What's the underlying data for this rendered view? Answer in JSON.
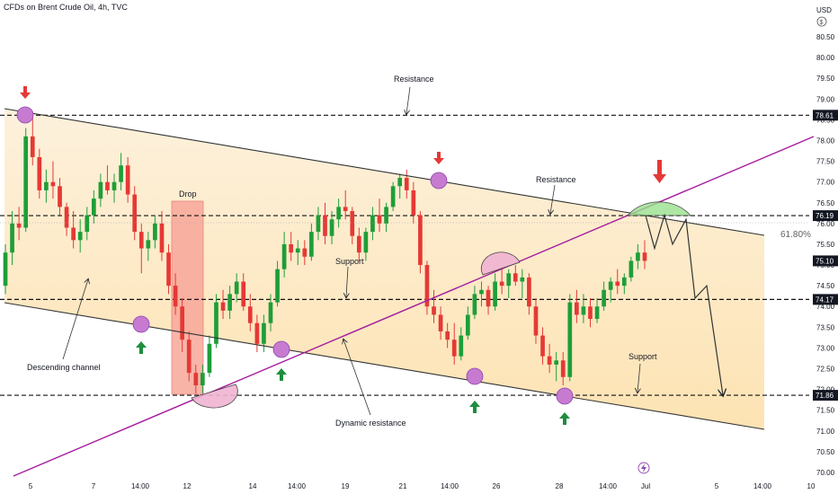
{
  "header": {
    "title": "CFDs on Brent Crude Oil, 4h, TVC"
  },
  "price_axis": {
    "currency": "USD"
  },
  "colors": {
    "bull": "#26a69a",
    "bear": "#ef5350",
    "bull_candle": "#1e9e38",
    "bear_candle": "#e53935",
    "channel_fill": "#fdecc8",
    "dynamic_line": "#a61da0",
    "circle": "#c67bd1",
    "drop_box": "#f8a79a",
    "green_cap": "#9be08e",
    "pink_cap": "#f0b4d2"
  },
  "chart_data": {
    "type": "candlestick",
    "symbol": "CFDs on Brent Crude Oil",
    "timeframe": "4h",
    "source": "TVC",
    "ylim": [
      70.0,
      81.0
    ],
    "y_ticks": [
      70.0,
      70.5,
      71.0,
      71.5,
      72.0,
      72.5,
      73.0,
      73.5,
      74.0,
      74.5,
      75.0,
      75.5,
      76.0,
      76.5,
      77.0,
      77.5,
      78.0,
      78.5,
      79.0,
      79.5,
      80.0,
      80.5
    ],
    "x_ticks": [
      "5",
      "7",
      "14:00",
      "12",
      "14",
      "14:00",
      "19",
      "21",
      "14:00",
      "26",
      "28",
      "14:00",
      "Jul",
      "5",
      "14:00",
      "10"
    ],
    "levels": [
      {
        "name": "resistance-top",
        "value": 78.61,
        "label": "78.61"
      },
      {
        "name": "resistance-mid",
        "value": 76.19,
        "label": "76.19"
      },
      {
        "name": "support-mid",
        "value": 74.17,
        "label": "74.17"
      },
      {
        "name": "support-bottom",
        "value": 71.86,
        "label": "71.86"
      }
    ],
    "current_price": {
      "value": 75.1,
      "label": "75.10"
    },
    "fib": {
      "label": "61.80%",
      "value": 76.05
    },
    "annotations": [
      "Resistance",
      "Resistance",
      "Support",
      "Support",
      "Drop",
      "Descending channel",
      "Dynamic resistance"
    ],
    "candles": [
      [
        74.5,
        75.5,
        74.3,
        75.3
      ],
      [
        75.3,
        76.3,
        75.0,
        76.0
      ],
      [
        76.0,
        76.4,
        75.6,
        75.9
      ],
      [
        75.9,
        78.3,
        75.8,
        78.1
      ],
      [
        78.1,
        78.7,
        77.4,
        77.6
      ],
      [
        77.6,
        77.8,
        76.6,
        76.8
      ],
      [
        76.8,
        77.3,
        76.5,
        77.0
      ],
      [
        77.0,
        77.5,
        76.6,
        76.9
      ],
      [
        76.9,
        77.1,
        76.2,
        76.4
      ],
      [
        76.4,
        76.5,
        75.7,
        75.9
      ],
      [
        75.9,
        76.3,
        75.4,
        75.6
      ],
      [
        75.6,
        76.1,
        75.3,
        75.8
      ],
      [
        75.8,
        76.4,
        75.6,
        76.2
      ],
      [
        76.2,
        76.8,
        76.0,
        76.6
      ],
      [
        76.6,
        77.2,
        76.4,
        77.0
      ],
      [
        77.0,
        77.4,
        76.7,
        76.8
      ],
      [
        76.8,
        77.2,
        76.5,
        77.0
      ],
      [
        77.0,
        77.7,
        76.8,
        77.4
      ],
      [
        77.4,
        77.6,
        76.5,
        76.7
      ],
      [
        76.7,
        76.9,
        75.6,
        75.8
      ],
      [
        75.8,
        76.0,
        74.8,
        75.4
      ],
      [
        75.4,
        75.8,
        75.1,
        75.6
      ],
      [
        75.6,
        76.2,
        75.4,
        76.0
      ],
      [
        76.0,
        76.3,
        75.1,
        75.3
      ],
      [
        75.3,
        75.5,
        74.3,
        74.5
      ],
      [
        74.5,
        74.8,
        73.8,
        74.0
      ],
      [
        74.0,
        74.2,
        72.9,
        73.2
      ],
      [
        73.2,
        73.4,
        72.2,
        72.4
      ],
      [
        72.4,
        72.6,
        71.9,
        72.1
      ],
      [
        72.1,
        72.6,
        71.9,
        72.4
      ],
      [
        72.4,
        73.3,
        72.3,
        73.1
      ],
      [
        73.1,
        74.3,
        73.0,
        74.1
      ],
      [
        74.1,
        74.4,
        73.7,
        73.9
      ],
      [
        73.9,
        74.5,
        73.7,
        74.3
      ],
      [
        74.3,
        74.8,
        74.1,
        74.6
      ],
      [
        74.6,
        74.8,
        73.9,
        74.0
      ],
      [
        74.0,
        74.3,
        73.4,
        73.6
      ],
      [
        73.6,
        73.8,
        72.9,
        73.1
      ],
      [
        73.1,
        73.8,
        72.9,
        73.6
      ],
      [
        73.6,
        74.3,
        73.4,
        74.1
      ],
      [
        74.1,
        75.1,
        74.0,
        74.9
      ],
      [
        74.9,
        75.8,
        74.7,
        75.5
      ],
      [
        75.5,
        75.8,
        75.1,
        75.3
      ],
      [
        75.3,
        75.6,
        75.0,
        75.4
      ],
      [
        75.4,
        75.6,
        75.0,
        75.2
      ],
      [
        75.2,
        76.0,
        75.1,
        75.8
      ],
      [
        75.8,
        76.4,
        75.6,
        76.2
      ],
      [
        76.2,
        76.5,
        75.5,
        75.7
      ],
      [
        75.7,
        76.3,
        75.5,
        76.1
      ],
      [
        76.1,
        76.6,
        75.9,
        76.4
      ],
      [
        76.4,
        76.8,
        76.1,
        76.3
      ],
      [
        76.3,
        76.4,
        75.5,
        75.7
      ],
      [
        75.7,
        75.9,
        75.1,
        75.3
      ],
      [
        75.3,
        75.9,
        75.1,
        75.8
      ],
      [
        75.8,
        76.4,
        75.6,
        76.2
      ],
      [
        76.2,
        76.6,
        75.8,
        76.0
      ],
      [
        76.0,
        76.5,
        75.8,
        76.4
      ],
      [
        76.4,
        77.0,
        76.3,
        76.9
      ],
      [
        76.9,
        77.2,
        76.6,
        77.1
      ],
      [
        77.1,
        77.3,
        76.6,
        76.8
      ],
      [
        76.8,
        77.0,
        76.0,
        76.2
      ],
      [
        76.2,
        76.3,
        74.8,
        75.0
      ],
      [
        75.0,
        75.1,
        73.8,
        74.0
      ],
      [
        74.0,
        74.4,
        73.6,
        73.8
      ],
      [
        73.8,
        74.0,
        73.2,
        73.4
      ],
      [
        73.4,
        73.6,
        73.0,
        73.2
      ],
      [
        73.2,
        73.6,
        72.6,
        72.8
      ],
      [
        72.8,
        73.5,
        72.7,
        73.3
      ],
      [
        73.3,
        74.0,
        73.2,
        73.8
      ],
      [
        73.8,
        74.5,
        73.7,
        74.3
      ],
      [
        74.3,
        74.6,
        74.0,
        74.4
      ],
      [
        74.4,
        74.5,
        73.8,
        74.0
      ],
      [
        74.0,
        74.8,
        73.9,
        74.6
      ],
      [
        74.6,
        75.0,
        74.3,
        74.5
      ],
      [
        74.5,
        74.9,
        74.2,
        74.8
      ],
      [
        74.8,
        75.0,
        74.5,
        74.6
      ],
      [
        74.6,
        74.9,
        74.2,
        74.7
      ],
      [
        74.7,
        74.8,
        73.8,
        74.0
      ],
      [
        74.0,
        74.2,
        73.1,
        73.3
      ],
      [
        73.3,
        73.5,
        72.6,
        72.8
      ],
      [
        72.8,
        73.1,
        72.4,
        72.6
      ],
      [
        72.6,
        72.9,
        72.2,
        72.7
      ],
      [
        72.7,
        72.9,
        72.1,
        72.3
      ],
      [
        72.3,
        74.3,
        72.2,
        74.1
      ],
      [
        74.1,
        74.4,
        73.6,
        73.8
      ],
      [
        73.8,
        74.3,
        73.6,
        74.0
      ],
      [
        74.0,
        74.2,
        73.5,
        73.7
      ],
      [
        73.7,
        74.2,
        73.6,
        74.0
      ],
      [
        74.0,
        74.6,
        73.9,
        74.4
      ],
      [
        74.4,
        74.7,
        74.1,
        74.6
      ],
      [
        74.6,
        74.9,
        74.3,
        74.5
      ],
      [
        74.5,
        74.8,
        74.3,
        74.7
      ],
      [
        74.7,
        75.2,
        74.6,
        75.1
      ],
      [
        75.1,
        75.5,
        74.9,
        75.3
      ],
      [
        75.3,
        75.6,
        74.9,
        75.1
      ]
    ],
    "projection": [
      76.2,
      75.4,
      76.2,
      75.5,
      76.1,
      74.2,
      74.5,
      71.86
    ]
  }
}
